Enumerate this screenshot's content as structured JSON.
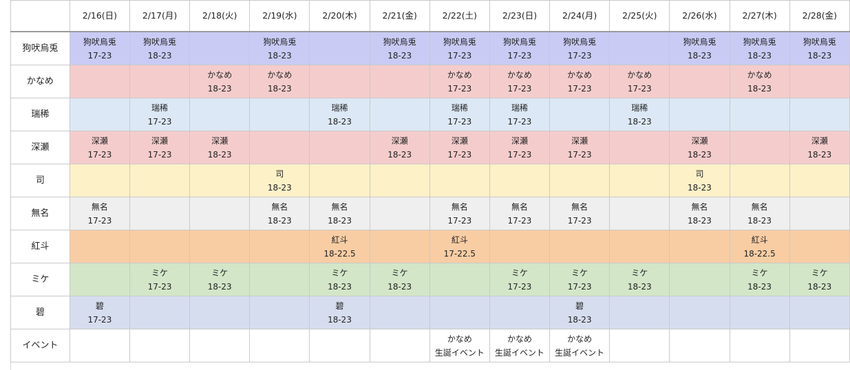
{
  "dates": [
    "2/16(日)",
    "2/17(月)",
    "2/18(火)",
    "2/19(水)",
    "2/20(木)",
    "2/21(金)",
    "2/22(土)",
    "2/23(日)",
    "2/24(月)",
    "2/25(火)",
    "2/26(水)",
    "2/27(木)",
    "2/28(金)"
  ],
  "rows": [
    {
      "label": "狗吠烏兎",
      "color": "#c9cbf5",
      "cells": [
        [
          "狗吠烏兎",
          "17-23"
        ],
        [
          "狗吠烏兎",
          "18-23"
        ],
        [],
        [
          "狗吠烏兎",
          "18-23"
        ],
        [],
        [
          "狗吠烏兎",
          "18-23"
        ],
        [
          "狗吠烏兎",
          "17-23"
        ],
        [
          "狗吠烏兎",
          "17-23"
        ],
        [
          "狗吠烏兎",
          "17-23"
        ],
        [],
        [
          "狗吠烏兎",
          "18-23"
        ],
        [
          "狗吠烏兎",
          "18-23"
        ],
        [
          "狗吠烏兎",
          "18-23"
        ]
      ]
    },
    {
      "label": "かなめ",
      "color": "#f5cccc",
      "cells": [
        [],
        [],
        [
          "かなめ",
          "18-23"
        ],
        [
          "かなめ",
          "18-23"
        ],
        [],
        [],
        [
          "かなめ",
          "17-23"
        ],
        [
          "かなめ",
          "17-23"
        ],
        [
          "かなめ",
          "17-23"
        ],
        [
          "かなめ",
          "17-23"
        ],
        [],
        [
          "かなめ",
          "18-23"
        ],
        []
      ]
    },
    {
      "label": "瑞稀",
      "color": "#dce8f5",
      "cells": [
        [],
        [
          "瑞稀",
          "17-23"
        ],
        [],
        [],
        [
          "瑞稀",
          "18-23"
        ],
        [],
        [
          "瑞稀",
          "17-23"
        ],
        [
          "瑞稀",
          "17-23"
        ],
        [],
        [
          "瑞稀",
          "18-23"
        ],
        [],
        [],
        []
      ]
    },
    {
      "label": "深瀬",
      "color": "#f5cccc",
      "cells": [
        [
          "深瀬",
          "17-23"
        ],
        [
          "深瀬",
          "17-23"
        ],
        [
          "深瀬",
          "18-23"
        ],
        [],
        [],
        [
          "深瀬",
          "18-23"
        ],
        [
          "深瀬",
          "17-23"
        ],
        [
          "深瀬",
          "17-23"
        ],
        [
          "深瀬",
          "17-23"
        ],
        [],
        [
          "深瀬",
          "18-23"
        ],
        [],
        [
          "深瀬",
          "18-23"
        ]
      ]
    },
    {
      "label": "司",
      "color": "#fdf1c8",
      "cells": [
        [],
        [],
        [],
        [
          "司",
          "18-23"
        ],
        [],
        [],
        [],
        [],
        [],
        [],
        [
          "司",
          "18-23"
        ],
        [],
        []
      ]
    },
    {
      "label": "無名",
      "color": "#efefef",
      "cells": [
        [
          "無名",
          "17-23"
        ],
        [],
        [],
        [
          "無名",
          "18-23"
        ],
        [
          "無名",
          "18-23"
        ],
        [],
        [
          "無名",
          "17-23"
        ],
        [
          "無名",
          "17-23"
        ],
        [
          "無名",
          "17-23"
        ],
        [],
        [
          "無名",
          "18-23"
        ],
        [
          "無名",
          "18-23"
        ],
        []
      ]
    },
    {
      "label": "紅斗",
      "color": "#f8cda4",
      "cells": [
        [],
        [],
        [],
        [],
        [
          "紅斗",
          "18-22.5"
        ],
        [],
        [
          "紅斗",
          "17-22.5"
        ],
        [],
        [],
        [],
        [],
        [
          "紅斗",
          "18-22.5"
        ],
        []
      ]
    },
    {
      "label": "ミケ",
      "color": "#d3e6c8",
      "cells": [
        [],
        [
          "ミケ",
          "17-23"
        ],
        [
          "ミケ",
          "18-23"
        ],
        [],
        [
          "ミケ",
          "18-23"
        ],
        [
          "ミケ",
          "18-23"
        ],
        [],
        [
          "ミケ",
          "17-23"
        ],
        [
          "ミケ",
          "17-23"
        ],
        [
          "ミケ",
          "18-23"
        ],
        [],
        [
          "ミケ",
          "18-23"
        ],
        [
          "ミケ",
          "18-23"
        ]
      ]
    },
    {
      "label": "碧",
      "color": "#d6ddef",
      "cells": [
        [
          "碧",
          "17-23"
        ],
        [],
        [],
        [],
        [
          "碧",
          "18-23"
        ],
        [],
        [],
        [],
        [
          "碧",
          "18-23"
        ],
        [],
        [],
        [],
        []
      ]
    },
    {
      "label": "イベント",
      "color": "#ffffff",
      "cells": [
        [],
        [],
        [],
        [],
        [],
        [],
        [
          "かなめ",
          "生誕イベント"
        ],
        [
          "かなめ",
          "生誕イベント"
        ],
        [
          "かなめ",
          "生誕イベント"
        ],
        [],
        [],
        [],
        []
      ]
    }
  ]
}
